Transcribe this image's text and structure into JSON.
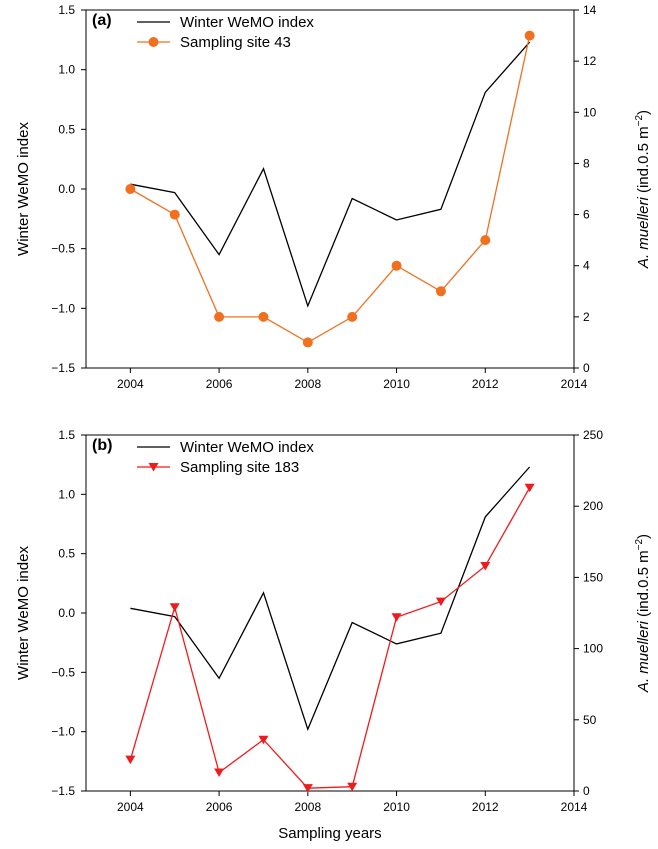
{
  "chart_data": [
    {
      "type": "line",
      "panel_label": "(a)",
      "xlabel": "",
      "ylabel": "Winter WeMO index",
      "y2label_italic": "A. muelleri",
      "y2label_rest": " (ind.0.5 m",
      "y2label_sup": "−2",
      "y2label_end": ")",
      "xlim": [
        2003,
        2014
      ],
      "xticks": [
        "2004",
        "2006",
        "2008",
        "2010",
        "2012",
        "2014"
      ],
      "ylim": [
        -1.5,
        1.5
      ],
      "yticks": [
        "−1.5",
        "−1.0",
        "−0.5",
        "0.0",
        "0.5",
        "1.0",
        "1.5"
      ],
      "y2lim": [
        0,
        14
      ],
      "y2ticks": [
        "0",
        "2",
        "4",
        "6",
        "8",
        "10",
        "12",
        "14"
      ],
      "legend_position": "top-left",
      "series": [
        {
          "name": "Winter WeMO index",
          "axis": "left",
          "color": "#000000",
          "marker": "none",
          "x": [
            2004,
            2005,
            2006,
            2007,
            2008,
            2009,
            2010,
            2011,
            2012,
            2013
          ],
          "values": [
            0.04,
            -0.03,
            -0.55,
            0.17,
            -0.98,
            -0.08,
            -0.26,
            -0.17,
            0.81,
            1.23
          ]
        },
        {
          "name": "Sampling site 43",
          "axis": "right",
          "color": "#f07020",
          "marker": "circle",
          "x": [
            2004,
            2005,
            2006,
            2007,
            2008,
            2009,
            2010,
            2011,
            2012,
            2013
          ],
          "values": [
            7,
            6,
            2,
            2,
            1,
            2,
            4,
            3,
            5,
            13
          ]
        }
      ]
    },
    {
      "type": "line",
      "panel_label": "(b)",
      "xlabel": "Sampling years",
      "ylabel": "Winter WeMO index",
      "y2label_italic": "A. muelleri",
      "y2label_rest": " (ind.0.5 m",
      "y2label_sup": "−2",
      "y2label_end": ")",
      "xlim": [
        2003,
        2014
      ],
      "xticks": [
        "2004",
        "2006",
        "2008",
        "2010",
        "2012",
        "2014"
      ],
      "ylim": [
        -1.5,
        1.5
      ],
      "yticks": [
        "−1.5",
        "−1.0",
        "−0.5",
        "0.0",
        "0.5",
        "1.0",
        "1.5"
      ],
      "y2lim": [
        0,
        250
      ],
      "y2ticks": [
        "0",
        "50",
        "100",
        "150",
        "200",
        "250"
      ],
      "legend_position": "top-left",
      "series": [
        {
          "name": "Winter WeMO index",
          "axis": "left",
          "color": "#000000",
          "marker": "none",
          "x": [
            2004,
            2005,
            2006,
            2007,
            2008,
            2009,
            2010,
            2011,
            2012,
            2013
          ],
          "values": [
            0.04,
            -0.03,
            -0.55,
            0.17,
            -0.98,
            -0.08,
            -0.26,
            -0.17,
            0.81,
            1.23
          ]
        },
        {
          "name": "Sampling site 183",
          "axis": "right",
          "color": "#ee1c1c",
          "marker": "triangle-down",
          "x": [
            2004,
            2005,
            2006,
            2007,
            2008,
            2009,
            2010,
            2011,
            2012,
            2013
          ],
          "values": [
            22,
            129,
            13,
            36,
            2,
            3,
            122,
            133,
            158,
            213
          ]
        }
      ]
    }
  ]
}
